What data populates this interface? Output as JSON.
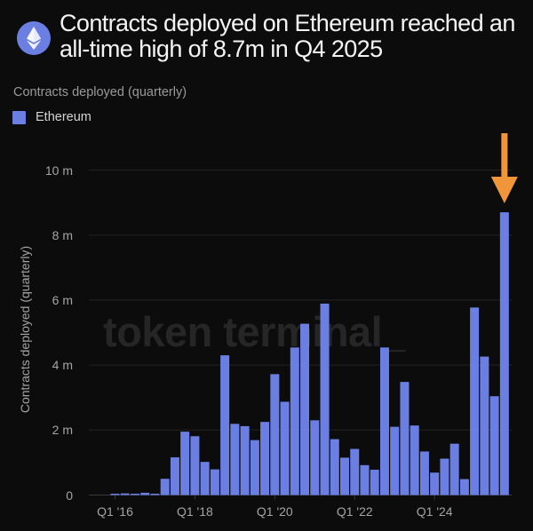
{
  "header": {
    "logo_icon": "ethereum-logo-icon",
    "title": "Contracts deployed on Ethereum reached an all-time high of 8.7m in Q4 2025",
    "subtitle": "Contracts deployed (quarterly)"
  },
  "legend": {
    "items": [
      {
        "label": "Ethereum",
        "color": "#6b7fe3"
      }
    ]
  },
  "watermark": "token terminal_",
  "annotation": {
    "icon": "arrow-down-icon",
    "color": "#f0953a",
    "target": "Q4 '25"
  },
  "chart_data": {
    "type": "bar",
    "title": "Contracts deployed on Ethereum reached an all-time high of 8.7m in Q4 2025",
    "subtitle": "Contracts deployed (quarterly)",
    "xlabel": "",
    "ylabel": "Contracts deployed (quarterly)",
    "ylim": [
      0,
      10
    ],
    "y_unit": "m",
    "yticks": [
      "0",
      "2 m",
      "4 m",
      "6 m",
      "8 m",
      "10 m"
    ],
    "ytick_values": [
      0,
      2,
      4,
      6,
      8,
      10
    ],
    "xticks": [
      "Q1 '16",
      "Q1 '18",
      "Q1 '20",
      "Q1 '22",
      "Q1 '24"
    ],
    "xtick_indices": [
      2,
      10,
      18,
      26,
      34
    ],
    "grid": true,
    "legend_position": "top-left",
    "bar_color": "#6b7fe3",
    "categories": [
      "Q3 '15",
      "Q4 '15",
      "Q1 '16",
      "Q2 '16",
      "Q3 '16",
      "Q4 '16",
      "Q1 '17",
      "Q2 '17",
      "Q3 '17",
      "Q4 '17",
      "Q1 '18",
      "Q2 '18",
      "Q3 '18",
      "Q4 '18",
      "Q1 '19",
      "Q2 '19",
      "Q3 '19",
      "Q4 '19",
      "Q1 '20",
      "Q2 '20",
      "Q3 '20",
      "Q4 '20",
      "Q1 '21",
      "Q2 '21",
      "Q3 '21",
      "Q4 '21",
      "Q1 '22",
      "Q2 '22",
      "Q3 '22",
      "Q4 '22",
      "Q1 '23",
      "Q2 '23",
      "Q3 '23",
      "Q4 '23",
      "Q1 '24",
      "Q2 '24",
      "Q3 '24",
      "Q4 '24",
      "Q1 '25",
      "Q2 '25",
      "Q3 '25",
      "Q4 '25"
    ],
    "series": [
      {
        "name": "Ethereum",
        "values": [
          0,
          0,
          0.01,
          0.05,
          0.01,
          0.07,
          0.01,
          0.5,
          1.16,
          1.95,
          1.81,
          1.02,
          0.79,
          4.3,
          2.19,
          2.12,
          1.69,
          2.25,
          3.72,
          2.87,
          4.54,
          5.27,
          2.3,
          5.89,
          1.72,
          1.15,
          1.42,
          0.92,
          0.78,
          4.54,
          2.1,
          3.48,
          2.14,
          1.34,
          0.69,
          1.12,
          1.58,
          0.49,
          5.77,
          4.26,
          3.04,
          8.7
        ]
      }
    ],
    "annotations": [
      {
        "type": "arrow",
        "points_to": "Q4 '25",
        "color": "#f0953a"
      }
    ]
  }
}
